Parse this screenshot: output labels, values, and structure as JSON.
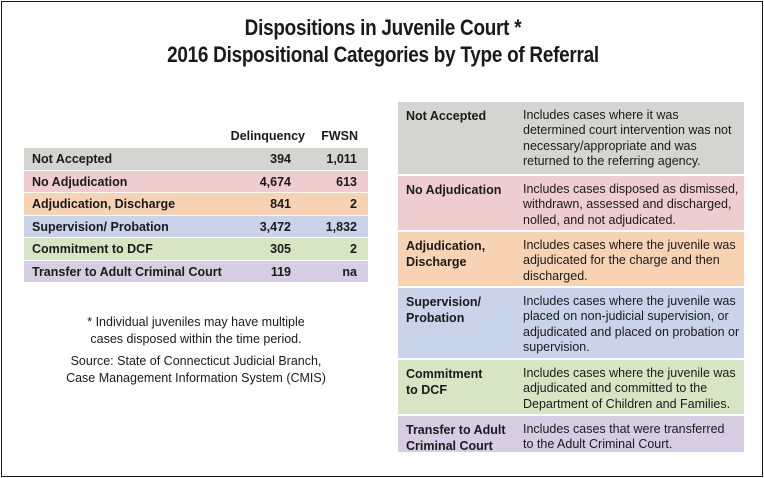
{
  "title": {
    "line1": "Dispositions in Juvenile Court *",
    "line2": "2016 Dispositional Categories by Type of Referral"
  },
  "colors": {
    "gray": "#d4d4d3",
    "pink": "#efcdcf",
    "orange": "#f7d3b4",
    "blue": "#c9d3ea",
    "green": "#d6e6c5",
    "purple": "#d6cde3"
  },
  "summary_table": {
    "headers": {
      "category": "",
      "delinquency": "Delinquency",
      "fwsn": "FWSN"
    },
    "rows": [
      {
        "label": "Not Accepted",
        "delinquency": "394",
        "fwsn": "1,011",
        "color": "#d4d4d3"
      },
      {
        "label": "No Adjudication",
        "delinquency": "4,674",
        "fwsn": "613",
        "color": "#efcdcf"
      },
      {
        "label": "Adjudication, Discharge",
        "delinquency": "841",
        "fwsn": "2",
        "color": "#f7d3b4"
      },
      {
        "label": "Supervision/ Probation",
        "delinquency": "3,472",
        "fwsn": "1,832",
        "color": "#c9d3ea"
      },
      {
        "label": "Commitment to DCF",
        "delinquency": "305",
        "fwsn": "2",
        "color": "#d6e6c5"
      },
      {
        "label": "Transfer to Adult Criminal Court",
        "delinquency": "119",
        "fwsn": "na",
        "color": "#d6cde3"
      }
    ]
  },
  "footnote": {
    "line1": "* Individual juveniles may have multiple",
    "line2": "cases disposed within the time period."
  },
  "source": {
    "line1": "Source: State of Connecticut Judicial Branch,",
    "line2": "Case Management Information System (CMIS)"
  },
  "definitions": [
    {
      "term": [
        "Not Accepted"
      ],
      "description": [
        "Includes cases where it was",
        "determined court intervention was not",
        "necessary/appropriate and was",
        "returned to the referring agency."
      ],
      "color": "#d4d4d3"
    },
    {
      "term": [
        "No Adjudication"
      ],
      "description": [
        "Includes cases disposed as dismissed,",
        "withdrawn, assessed and discharged,",
        "nolled, and not adjudicated."
      ],
      "color": "#efcdcf"
    },
    {
      "term": [
        "Adjudication,",
        "Discharge"
      ],
      "description": [
        "Includes cases where the juvenile was",
        "adjudicated for the charge and then",
        "discharged."
      ],
      "color": "#f7d3b4"
    },
    {
      "term": [
        "Supervision/",
        "Probation"
      ],
      "description": [
        "Includes cases where the juvenile was",
        "placed on non-judicial supervision, or",
        "adjudicated and placed on probation or",
        "supervision."
      ],
      "color": "#c9d3ea"
    },
    {
      "term": [
        "Commitment",
        "to DCF"
      ],
      "description": [
        "Includes cases where the juvenile was",
        "adjudicated and committed to the",
        "Department of Children and Families."
      ],
      "color": "#d6e6c5"
    },
    {
      "term": [
        "Transfer to Adult",
        "Criminal Court"
      ],
      "description": [
        "Includes cases that were transferred",
        "to the Adult Criminal Court."
      ],
      "color": "#d6cde3"
    }
  ]
}
